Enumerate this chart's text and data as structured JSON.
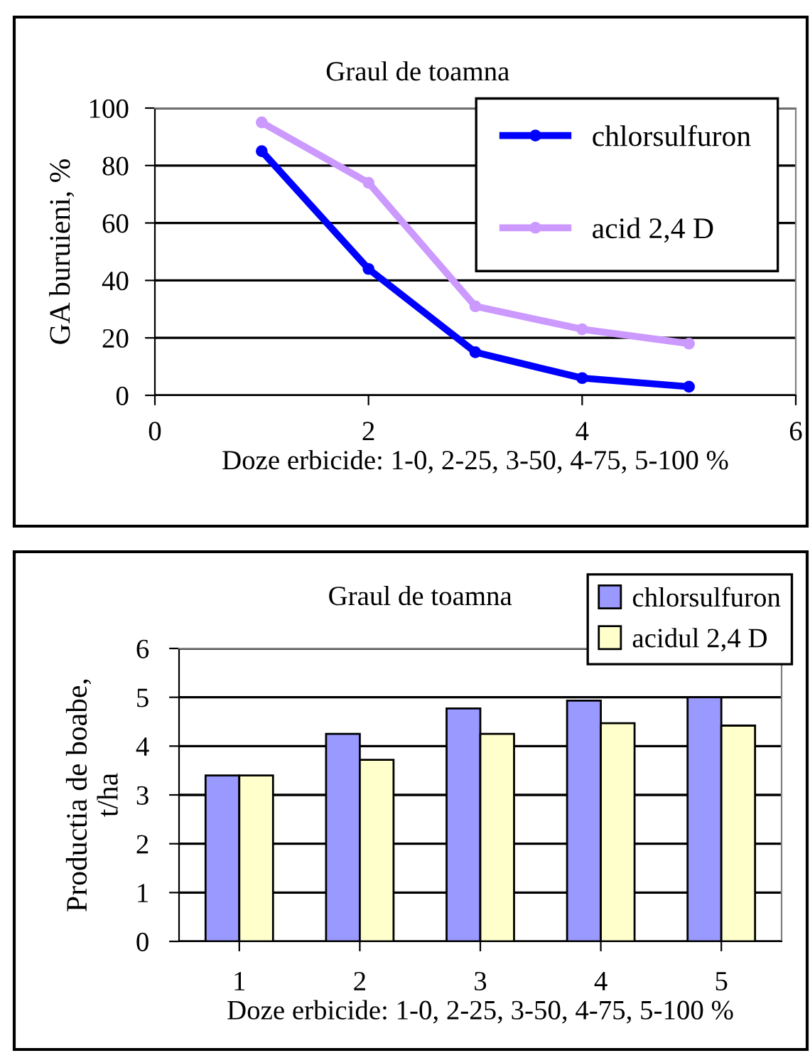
{
  "chart_data": [
    {
      "type": "line",
      "title": "Graul de toamna",
      "xlabel": "Doze erbicide: 1-0, 2-25, 3-50, 4-75, 5-100 %",
      "ylabel": "GA buruieni, %",
      "x": [
        1,
        2,
        3,
        4,
        5
      ],
      "series": [
        {
          "name": "chlorsulfuron",
          "color": "#0000ff",
          "values": [
            85,
            44,
            15,
            6,
            3
          ]
        },
        {
          "name": "acid 2,4 D",
          "color": "#cc99ff",
          "values": [
            95,
            74,
            31,
            23,
            18
          ]
        }
      ],
      "xlim": [
        0,
        6
      ],
      "xticks": [
        0,
        2,
        4,
        6
      ],
      "ylim": [
        0,
        100
      ],
      "yticks": [
        0,
        20,
        40,
        60,
        80,
        100
      ],
      "grid": "y",
      "legend": "top right",
      "marker": "circle",
      "line_style": "solid"
    },
    {
      "type": "bar",
      "title": "Graul de toamna",
      "xlabel": "Doze erbicide: 1-0, 2-25, 3-50, 4-75, 5-100 %",
      "ylabel": "Productia de boabe,\nt/ha",
      "categories": [
        "1",
        "2",
        "3",
        "4",
        "5"
      ],
      "series": [
        {
          "name": "chlorsulfuron",
          "color": "#9999ff",
          "values": [
            3.4,
            4.25,
            4.77,
            4.93,
            5.0
          ]
        },
        {
          "name": "acidul 2,4 D",
          "color": "#ffffcc",
          "values": [
            3.4,
            3.72,
            4.25,
            4.47,
            4.42
          ]
        }
      ],
      "ylim": [
        0,
        6
      ],
      "yticks": [
        0,
        1,
        2,
        3,
        4,
        5,
        6
      ],
      "grid": "y",
      "legend": "top right"
    }
  ]
}
